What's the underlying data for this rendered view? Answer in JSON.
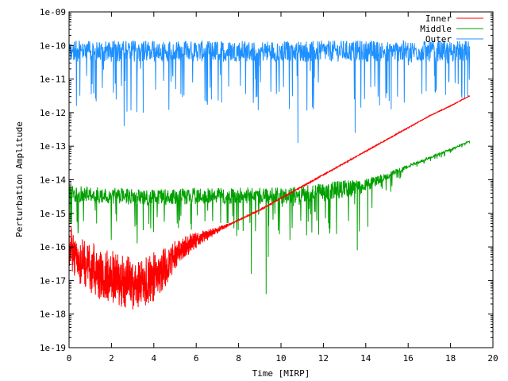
{
  "chart_data": {
    "type": "line",
    "title": "",
    "xlabel": "Time [MIRP]",
    "ylabel": "Perturbation Amplitude",
    "xlim": [
      0,
      20
    ],
    "ylim_log10": [
      -19,
      -9
    ],
    "y_scale": "log",
    "grid": false,
    "legend_position": "top-right",
    "x_ticks": [
      "0",
      "2",
      "4",
      "6",
      "8",
      "10",
      "12",
      "14",
      "16",
      "18",
      "20"
    ],
    "y_ticks": [
      "1e-19",
      "1e-18",
      "1e-17",
      "1e-16",
      "1e-15",
      "1e-14",
      "1e-13",
      "1e-12",
      "1e-11",
      "1e-10",
      "1e-09"
    ],
    "series": [
      {
        "name": "Inner",
        "color": "#ff0000",
        "description_points_log10": [
          [
            0.0,
            -16.0
          ],
          [
            0.5,
            -16.4
          ],
          [
            1.0,
            -16.6
          ],
          [
            1.5,
            -16.8
          ],
          [
            2.0,
            -16.9
          ],
          [
            2.5,
            -17.0
          ],
          [
            3.0,
            -17.1
          ],
          [
            3.5,
            -17.1
          ],
          [
            4.0,
            -16.9
          ],
          [
            4.5,
            -16.6
          ],
          [
            5.0,
            -16.3
          ],
          [
            5.5,
            -16.0
          ],
          [
            6.0,
            -15.8
          ],
          [
            6.5,
            -15.65
          ],
          [
            7.0,
            -15.5
          ],
          [
            7.5,
            -15.35
          ],
          [
            8.0,
            -15.2
          ],
          [
            9.0,
            -14.9
          ],
          [
            10.0,
            -14.55
          ],
          [
            11.0,
            -14.2
          ],
          [
            12.0,
            -13.85
          ],
          [
            13.0,
            -13.5
          ],
          [
            14.0,
            -13.15
          ],
          [
            15.0,
            -12.8
          ],
          [
            16.0,
            -12.45
          ],
          [
            17.0,
            -12.1
          ],
          [
            18.0,
            -11.8
          ],
          [
            18.9,
            -11.5
          ]
        ],
        "noise_log10": [
          [
            0.0,
            1.5
          ],
          [
            2.0,
            1.6
          ],
          [
            4.0,
            1.5
          ],
          [
            5.0,
            1.0
          ],
          [
            6.0,
            0.5
          ],
          [
            7.0,
            0.2
          ],
          [
            7.8,
            0.04
          ],
          [
            18.9,
            0.02
          ]
        ]
      },
      {
        "name": "Middle",
        "color": "#00a000",
        "description_points_log10": [
          [
            0.0,
            -14.45
          ],
          [
            2.0,
            -14.5
          ],
          [
            4.0,
            -14.55
          ],
          [
            6.0,
            -14.5
          ],
          [
            8.0,
            -14.5
          ],
          [
            9.0,
            -14.5
          ],
          [
            10.0,
            -14.5
          ],
          [
            11.0,
            -14.45
          ],
          [
            12.0,
            -14.4
          ],
          [
            13.0,
            -14.3
          ],
          [
            14.0,
            -14.2
          ],
          [
            14.5,
            -14.05
          ],
          [
            15.0,
            -13.9
          ],
          [
            15.5,
            -13.75
          ],
          [
            16.0,
            -13.6
          ],
          [
            17.0,
            -13.35
          ],
          [
            18.0,
            -13.1
          ],
          [
            18.9,
            -12.85
          ]
        ],
        "noise_log10": [
          [
            0.0,
            0.7
          ],
          [
            10.0,
            0.7
          ],
          [
            13.0,
            0.8
          ],
          [
            14.0,
            0.6
          ],
          [
            15.0,
            0.3
          ],
          [
            16.0,
            0.12
          ],
          [
            18.9,
            0.05
          ]
        ],
        "dips": [
          [
            8.6,
            -16.8
          ],
          [
            9.3,
            -17.4
          ],
          [
            9.4,
            -16.3
          ],
          [
            12.3,
            -15.6
          ],
          [
            13.6,
            -16.1
          ],
          [
            14.1,
            -15.4
          ],
          [
            3.5,
            -15.5
          ],
          [
            1.3,
            -15.3
          ]
        ]
      },
      {
        "name": "Outer",
        "color": "#1e90ff",
        "description_points_log10": [
          [
            0.0,
            -10.2
          ],
          [
            5.0,
            -10.2
          ],
          [
            10.0,
            -10.2
          ],
          [
            15.0,
            -10.2
          ],
          [
            18.9,
            -10.2
          ]
        ],
        "noise_log10": [
          [
            0.0,
            0.9
          ],
          [
            18.9,
            0.9
          ]
        ],
        "dips": [
          [
            2.6,
            -12.4
          ],
          [
            3.5,
            -12.0
          ],
          [
            10.8,
            -12.9
          ],
          [
            13.5,
            -12.6
          ],
          [
            15.2,
            -11.9
          ],
          [
            18.8,
            -11.5
          ],
          [
            7.2,
            -11.7
          ]
        ]
      }
    ]
  }
}
